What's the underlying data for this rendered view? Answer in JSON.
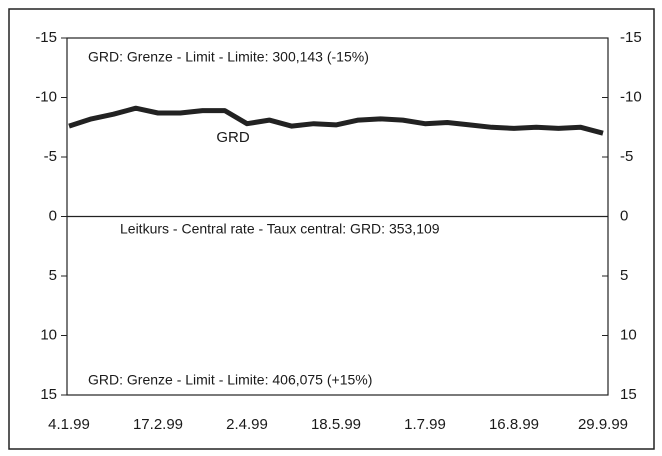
{
  "chart_data": {
    "type": "line",
    "categories": [
      "4.1.99",
      null,
      null,
      null,
      "17.2.99",
      null,
      null,
      null,
      "2.4.99",
      null,
      null,
      null,
      "18.5.99",
      null,
      null,
      null,
      "1.7.99",
      null,
      null,
      null,
      "16.8.99",
      null,
      null,
      null,
      "29.9.99"
    ],
    "series": [
      {
        "name": "GRD",
        "color": "#222222",
        "values": [
          -7.6,
          -8.2,
          -8.6,
          -9.1,
          -8.7,
          -8.7,
          -8.9,
          -8.9,
          -7.8,
          -8.1,
          -7.6,
          -7.8,
          -7.7,
          -8.1,
          -8.2,
          -8.1,
          -7.8,
          -7.9,
          -7.7,
          -7.5,
          -7.4,
          -7.5,
          -7.4,
          -7.5,
          -7.0
        ]
      }
    ],
    "ylim": [
      -15,
      15
    ],
    "y_inverted": true,
    "yticks": [
      -15,
      -10,
      -5,
      0,
      5,
      10,
      15
    ],
    "y2lim": [
      -15,
      15
    ],
    "y2ticks": [
      -15,
      -10,
      -5,
      0,
      5,
      10,
      15
    ],
    "annotations": [
      "GRD: Grenze - Limit - Limite: 300,143  (-15%)",
      "Leitkurs - Central rate - Taux central:  GRD: 353,109",
      "GRD: Grenze - Limit - Limite: 406,075  (+15%)"
    ]
  }
}
